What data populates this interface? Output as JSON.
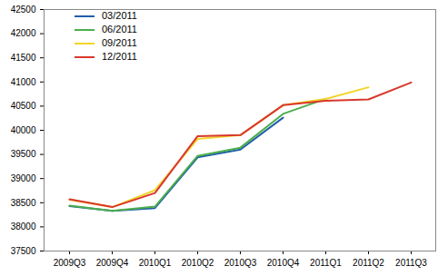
{
  "chart_data": {
    "type": "line",
    "categories": [
      "2009Q3",
      "2009Q4",
      "2010Q1",
      "2010Q2",
      "2010Q3",
      "2010Q4",
      "2011Q1",
      "2011Q2",
      "2011Q3"
    ],
    "series": [
      {
        "name": "03/2011",
        "color": "#1f5fa8",
        "values": [
          38430,
          38330,
          38390,
          39440,
          39600,
          40260,
          null,
          null,
          null
        ]
      },
      {
        "name": "06/2011",
        "color": "#4cae4c",
        "values": [
          38440,
          38330,
          38420,
          39470,
          39640,
          40340,
          40650,
          null,
          null
        ]
      },
      {
        "name": "09/2011",
        "color": "#f2d52a",
        "values": [
          38560,
          38410,
          38760,
          39820,
          39900,
          40520,
          40650,
          40890,
          null
        ]
      },
      {
        "name": "12/2011",
        "color": "#d9382c",
        "values": [
          38570,
          38410,
          38700,
          39880,
          39900,
          40520,
          40610,
          40640,
          40990
        ]
      }
    ],
    "ylim": [
      37500,
      42500
    ],
    "yticks": [
      37500,
      38000,
      38500,
      39000,
      39500,
      40000,
      40500,
      41000,
      41500,
      42000,
      42500
    ],
    "grid": false,
    "legend": "top-left"
  }
}
